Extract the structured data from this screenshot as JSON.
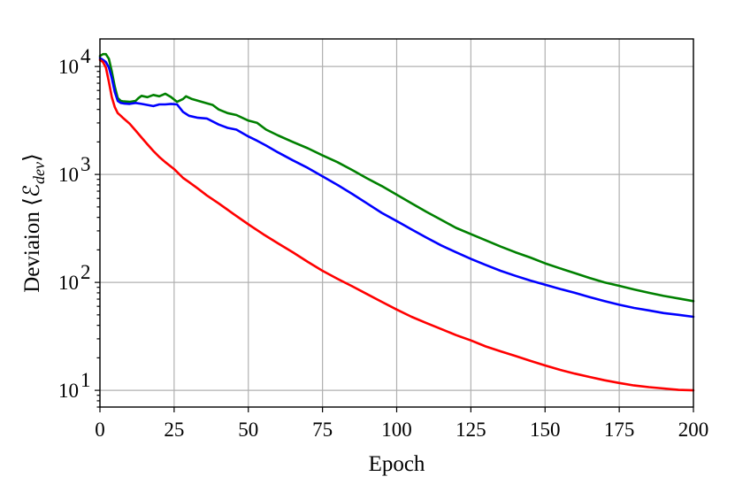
{
  "chart_data": {
    "type": "line",
    "title": "",
    "xlabel": "Epoch",
    "ylabel": "Deviaion ⟨ℰ",
    "ylabel_sub": "dev",
    "ylabel_close": "⟩",
    "y_scale": "log",
    "xlim": [
      0,
      200
    ],
    "ylim": [
      7,
      18000
    ],
    "x_ticks": [
      0,
      25,
      50,
      75,
      100,
      125,
      150,
      175,
      200
    ],
    "y_ticks": [
      {
        "value": 10,
        "base": "10",
        "exp": "1"
      },
      {
        "value": 100,
        "base": "10",
        "exp": "2"
      },
      {
        "value": 1000,
        "base": "10",
        "exp": "3"
      },
      {
        "value": 10000,
        "base": "10",
        "exp": "4"
      }
    ],
    "grid": true,
    "legend": "none",
    "series": [
      {
        "color": "#008000",
        "points": [
          [
            0,
            12500
          ],
          [
            1,
            13000
          ],
          [
            2,
            13000
          ],
          [
            3,
            11800
          ],
          [
            4,
            9000
          ],
          [
            5,
            6500
          ],
          [
            6,
            5100
          ],
          [
            7,
            4800
          ],
          [
            8,
            4750
          ],
          [
            10,
            4700
          ],
          [
            12,
            4800
          ],
          [
            13,
            5100
          ],
          [
            14,
            5350
          ],
          [
            16,
            5200
          ],
          [
            18,
            5450
          ],
          [
            20,
            5300
          ],
          [
            22,
            5600
          ],
          [
            24,
            5200
          ],
          [
            26,
            4700
          ],
          [
            28,
            5000
          ],
          [
            29,
            5300
          ],
          [
            31,
            5000
          ],
          [
            35,
            4650
          ],
          [
            38,
            4400
          ],
          [
            40,
            4000
          ],
          [
            43,
            3700
          ],
          [
            46,
            3550
          ],
          [
            50,
            3150
          ],
          [
            53,
            3000
          ],
          [
            56,
            2600
          ],
          [
            60,
            2300
          ],
          [
            65,
            2000
          ],
          [
            70,
            1750
          ],
          [
            75,
            1500
          ],
          [
            80,
            1300
          ],
          [
            85,
            1100
          ],
          [
            90,
            920
          ],
          [
            95,
            780
          ],
          [
            100,
            650
          ],
          [
            105,
            540
          ],
          [
            110,
            450
          ],
          [
            115,
            380
          ],
          [
            120,
            320
          ],
          [
            125,
            280
          ],
          [
            130,
            245
          ],
          [
            135,
            215
          ],
          [
            140,
            190
          ],
          [
            145,
            170
          ],
          [
            150,
            150
          ],
          [
            155,
            135
          ],
          [
            160,
            122
          ],
          [
            165,
            110
          ],
          [
            170,
            100
          ],
          [
            175,
            93
          ],
          [
            180,
            86
          ],
          [
            185,
            80
          ],
          [
            190,
            75
          ],
          [
            195,
            71
          ],
          [
            200,
            67
          ]
        ]
      },
      {
        "color": "#0000ff",
        "points": [
          [
            0,
            12000
          ],
          [
            1,
            11500
          ],
          [
            2,
            11000
          ],
          [
            3,
            9800
          ],
          [
            4,
            7800
          ],
          [
            5,
            5800
          ],
          [
            6,
            4800
          ],
          [
            7,
            4600
          ],
          [
            8,
            4550
          ],
          [
            10,
            4500
          ],
          [
            12,
            4600
          ],
          [
            14,
            4500
          ],
          [
            16,
            4400
          ],
          [
            18,
            4300
          ],
          [
            20,
            4450
          ],
          [
            22,
            4450
          ],
          [
            24,
            4500
          ],
          [
            26,
            4450
          ],
          [
            28,
            3800
          ],
          [
            30,
            3500
          ],
          [
            33,
            3350
          ],
          [
            36,
            3300
          ],
          [
            40,
            2900
          ],
          [
            43,
            2700
          ],
          [
            46,
            2600
          ],
          [
            50,
            2250
          ],
          [
            53,
            2050
          ],
          [
            56,
            1850
          ],
          [
            60,
            1600
          ],
          [
            65,
            1350
          ],
          [
            70,
            1150
          ],
          [
            75,
            960
          ],
          [
            80,
            800
          ],
          [
            85,
            660
          ],
          [
            90,
            540
          ],
          [
            95,
            440
          ],
          [
            100,
            370
          ],
          [
            105,
            310
          ],
          [
            110,
            260
          ],
          [
            115,
            220
          ],
          [
            120,
            190
          ],
          [
            125,
            165
          ],
          [
            130,
            145
          ],
          [
            135,
            128
          ],
          [
            140,
            115
          ],
          [
            145,
            104
          ],
          [
            150,
            95
          ],
          [
            155,
            87
          ],
          [
            160,
            80
          ],
          [
            165,
            73
          ],
          [
            170,
            67
          ],
          [
            175,
            62
          ],
          [
            180,
            58
          ],
          [
            185,
            55
          ],
          [
            190,
            52
          ],
          [
            195,
            50
          ],
          [
            200,
            48
          ]
        ]
      },
      {
        "color": "#ff0000",
        "points": [
          [
            0,
            11500
          ],
          [
            1,
            11000
          ],
          [
            2,
            9800
          ],
          [
            3,
            7200
          ],
          [
            4,
            5200
          ],
          [
            5,
            4200
          ],
          [
            6,
            3700
          ],
          [
            7,
            3500
          ],
          [
            8,
            3300
          ],
          [
            10,
            2950
          ],
          [
            12,
            2550
          ],
          [
            14,
            2200
          ],
          [
            16,
            1900
          ],
          [
            18,
            1650
          ],
          [
            20,
            1450
          ],
          [
            22,
            1300
          ],
          [
            25,
            1120
          ],
          [
            28,
            930
          ],
          [
            30,
            850
          ],
          [
            33,
            740
          ],
          [
            36,
            640
          ],
          [
            40,
            540
          ],
          [
            45,
            430
          ],
          [
            50,
            345
          ],
          [
            55,
            280
          ],
          [
            60,
            230
          ],
          [
            65,
            190
          ],
          [
            70,
            155
          ],
          [
            75,
            128
          ],
          [
            80,
            108
          ],
          [
            85,
            92
          ],
          [
            90,
            78
          ],
          [
            95,
            66
          ],
          [
            100,
            56
          ],
          [
            105,
            48
          ],
          [
            110,
            42
          ],
          [
            115,
            37
          ],
          [
            120,
            32.5
          ],
          [
            125,
            29
          ],
          [
            130,
            25.5
          ],
          [
            135,
            23
          ],
          [
            140,
            20.8
          ],
          [
            145,
            18.8
          ],
          [
            150,
            17
          ],
          [
            155,
            15.5
          ],
          [
            160,
            14.3
          ],
          [
            165,
            13.3
          ],
          [
            170,
            12.4
          ],
          [
            175,
            11.7
          ],
          [
            180,
            11.1
          ],
          [
            185,
            10.7
          ],
          [
            190,
            10.4
          ],
          [
            195,
            10.1
          ],
          [
            200,
            10
          ]
        ]
      }
    ]
  }
}
